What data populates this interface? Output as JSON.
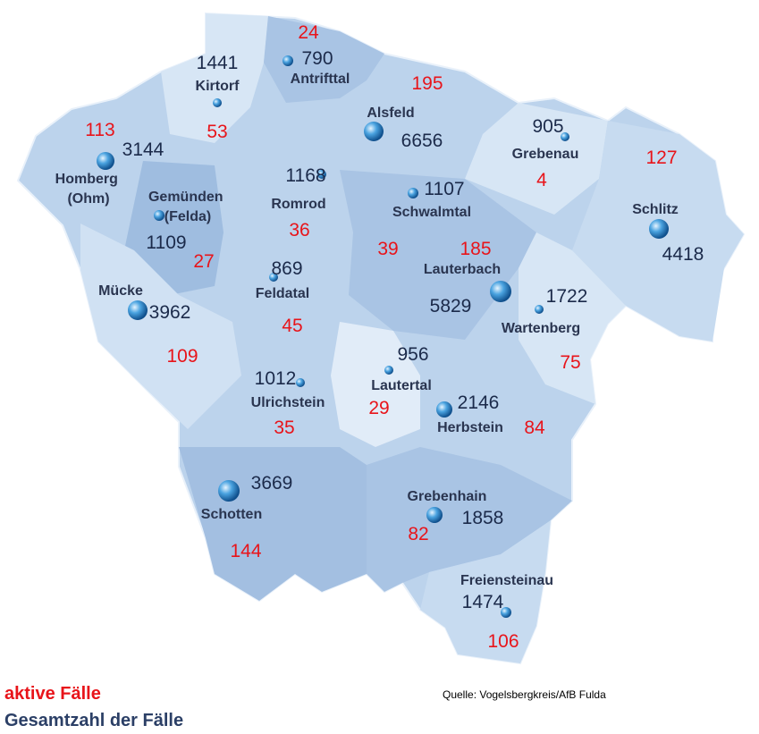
{
  "map": {
    "municipalities": [
      {
        "name": "Antrifttal",
        "total": 790,
        "active": 24
      },
      {
        "name": "Kirtorf",
        "total": 1441,
        "active": 53
      },
      {
        "name": "Alsfeld",
        "total": 6656,
        "active": 195
      },
      {
        "name": "Grebenau",
        "total": 905,
        "active": 4
      },
      {
        "name": "Schlitz",
        "total": 4418,
        "active": 127
      },
      {
        "name": "Homberg (Ohm)",
        "total": 3144,
        "active": 113
      },
      {
        "name": "Gemünden (Felda)",
        "total": 1109,
        "active": 27
      },
      {
        "name": "Romrod",
        "total": 1168,
        "active": 36
      },
      {
        "name": "Schwalmtal",
        "total": 1107,
        "active": 39
      },
      {
        "name": "Lauterbach",
        "total": 5829,
        "active": 185
      },
      {
        "name": "Wartenberg",
        "total": 1722,
        "active": 75
      },
      {
        "name": "Feldatal",
        "total": 869,
        "active": 45
      },
      {
        "name": "Mücke",
        "total": 3962,
        "active": 109
      },
      {
        "name": "Ulrichstein",
        "total": 1012,
        "active": 35
      },
      {
        "name": "Lautertal",
        "total": 956,
        "active": 29
      },
      {
        "name": "Herbstein",
        "total": 2146,
        "active": 84
      },
      {
        "name": "Schotten",
        "total": 3669,
        "active": 144
      },
      {
        "name": "Grebenhain",
        "total": 1858,
        "active": 82
      },
      {
        "name": "Freiensteinau",
        "total": 1474,
        "active": 106
      }
    ],
    "legend": {
      "active": "aktive Fälle",
      "total": "Gesamtzahl der Fälle"
    },
    "source": "Quelle: Vogelsbergkreis/AfB Fulda"
  }
}
